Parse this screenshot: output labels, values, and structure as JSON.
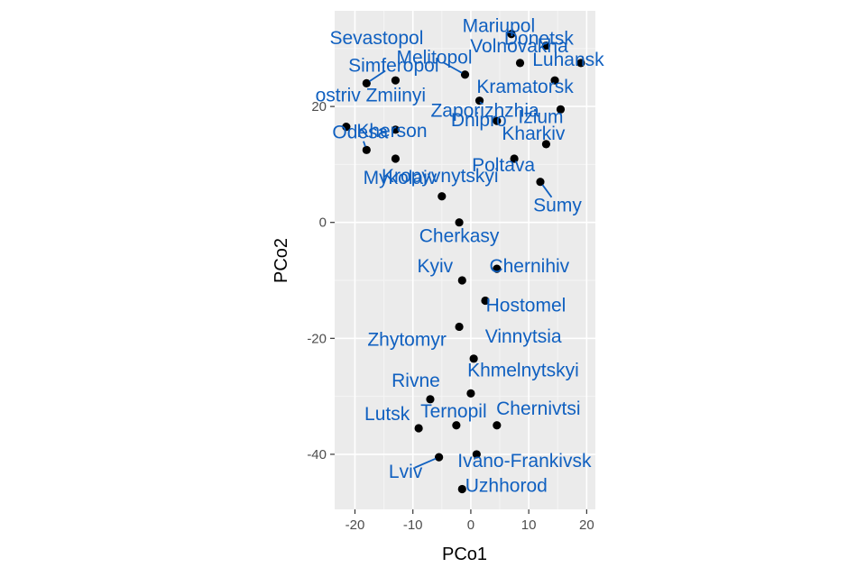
{
  "chart_data": {
    "type": "scatter",
    "title": "",
    "xlabel": "PCo1",
    "ylabel": "PCo2",
    "xlim": [
      -23.5,
      21.5
    ],
    "ylim": [
      -49.5,
      36.5
    ],
    "x_ticks": [
      -20,
      -10,
      0,
      10,
      20
    ],
    "y_ticks": [
      -40,
      -20,
      0,
      20
    ],
    "x_tick_labels": [
      "-20",
      "-10",
      "0",
      "10",
      "20"
    ],
    "y_tick_labels": [
      "-40",
      "-20",
      "0",
      "20"
    ],
    "grid": true,
    "legend": "none",
    "colors": {
      "panel_background": "#ebebeb",
      "grid_major": "#ffffff",
      "grid_minor": "#f5f5f5",
      "point": "#000000",
      "label": "#1060c0",
      "tick_text": "#4d4d4d",
      "axis_title": "#000000"
    },
    "points": [
      {
        "name": "Mariupol",
        "x": 7.0,
        "y": 32.5
      },
      {
        "name": "Donetsk",
        "x": 13.0,
        "y": 30.5
      },
      {
        "name": "Volnovakha",
        "x": 8.5,
        "y": 27.5
      },
      {
        "name": "Luhansk",
        "x": 19.0,
        "y": 27.5
      },
      {
        "name": "Melitopol",
        "x": -1.0,
        "y": 25.5
      },
      {
        "name": "Sevastopol",
        "x": -13.0,
        "y": 24.5
      },
      {
        "name": "Simferopol",
        "x": -18.0,
        "y": 24.0
      },
      {
        "name": "Kramatorsk",
        "x": 14.5,
        "y": 24.5
      },
      {
        "name": "Izium",
        "x": 15.5,
        "y": 19.5
      },
      {
        "name": "Zaporizhzhia",
        "x": 1.5,
        "y": 21.0
      },
      {
        "name": "ostriv Zmiinyi",
        "x": -21.5,
        "y": 16.5
      },
      {
        "name": "Kharkiv",
        "x": 13.0,
        "y": 13.5
      },
      {
        "name": "Dnipro",
        "x": 4.5,
        "y": 17.5
      },
      {
        "name": "Kherson",
        "x": -13.0,
        "y": 16.0
      },
      {
        "name": "Odesa",
        "x": -18.0,
        "y": 12.5
      },
      {
        "name": "Mykolaiv",
        "x": -13.0,
        "y": 11.0
      },
      {
        "name": "Poltava",
        "x": 7.5,
        "y": 11.0
      },
      {
        "name": "Sumy",
        "x": 12.0,
        "y": 7.0
      },
      {
        "name": "Kropyvnytskyi",
        "x": -5.0,
        "y": 4.5
      },
      {
        "name": "Cherkasy",
        "x": -2.0,
        "y": 0.0
      },
      {
        "name": "Kyiv",
        "x": -1.5,
        "y": -10.0
      },
      {
        "name": "Chernihiv",
        "x": 4.5,
        "y": -8.0
      },
      {
        "name": "Hostomel",
        "x": 2.5,
        "y": -13.5
      },
      {
        "name": "Zhytomyr",
        "x": -2.0,
        "y": -18.0
      },
      {
        "name": "Vinnytsia",
        "x": 0.5,
        "y": -23.5
      },
      {
        "name": "Khmelnytskyi",
        "x": 0.0,
        "y": -29.5
      },
      {
        "name": "Rivne",
        "x": -7.0,
        "y": -30.5
      },
      {
        "name": "Lutsk",
        "x": -9.0,
        "y": -35.5
      },
      {
        "name": "Ternopil",
        "x": -2.5,
        "y": -35.0
      },
      {
        "name": "Chernivtsi",
        "x": 4.5,
        "y": -35.0
      },
      {
        "name": "Ivano-Frankivsk",
        "x": 1.0,
        "y": -40.0
      },
      {
        "name": "Lviv",
        "x": -5.5,
        "y": -40.5
      },
      {
        "name": "Uzhhorod",
        "x": -1.5,
        "y": -46.0
      }
    ]
  }
}
